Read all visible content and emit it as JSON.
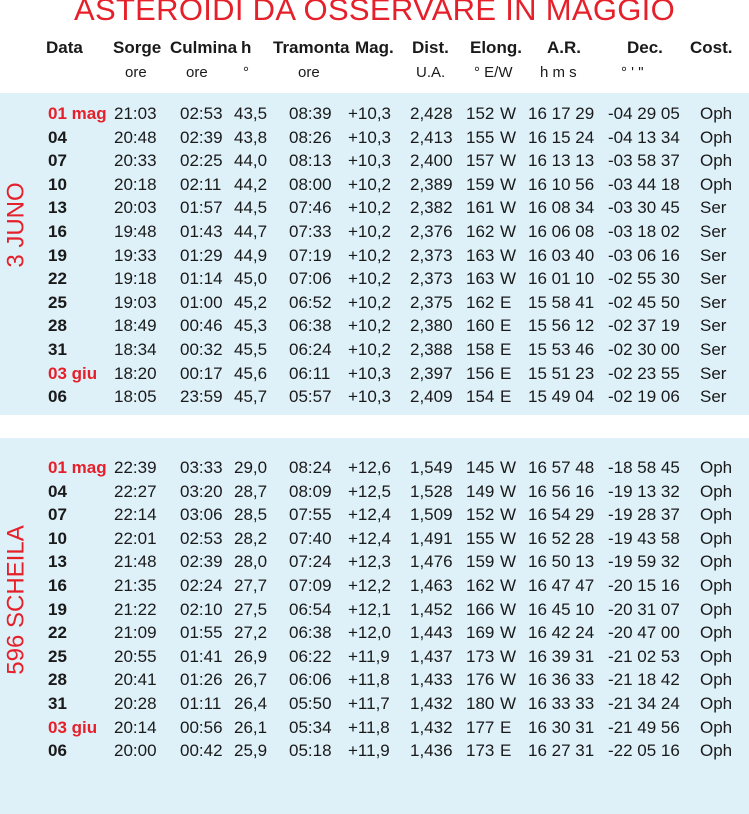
{
  "title": "ASTEROIDI DA OSSERVARE IN MAGGIO",
  "columns": [
    {
      "label": "Data",
      "unit": ""
    },
    {
      "label": "Sorge",
      "unit": "ore"
    },
    {
      "label": "Culmina",
      "unit": "ore"
    },
    {
      "label": "h",
      "unit": "°"
    },
    {
      "label": "Tramonta",
      "unit": "ore"
    },
    {
      "label": "Mag.",
      "unit": ""
    },
    {
      "label": "Dist.",
      "unit": "U.A."
    },
    {
      "label": "Elong.",
      "unit": "° E/W"
    },
    {
      "label": "A.R.",
      "unit": "h m s"
    },
    {
      "label": "Dec.",
      "unit": "° ' \""
    },
    {
      "label": "Cost.",
      "unit": ""
    }
  ],
  "sections": [
    {
      "name": "3 JUNO",
      "rows": [
        {
          "date": "01 mag",
          "red": true,
          "rise": "21:03",
          "culm": "02:53",
          "h": "43,5",
          "set": "08:39",
          "mag": "+10,3",
          "dist": "2,428",
          "elong": "152",
          "ew": "W",
          "ra": "16 17 29",
          "dec": "-04 29 05",
          "const": "Oph"
        },
        {
          "date": "04",
          "red": false,
          "rise": "20:48",
          "culm": "02:39",
          "h": "43,8",
          "set": "08:26",
          "mag": "+10,3",
          "dist": "2,413",
          "elong": "155",
          "ew": "W",
          "ra": "16 15 24",
          "dec": "-04 13 34",
          "const": "Oph"
        },
        {
          "date": "07",
          "red": false,
          "rise": "20:33",
          "culm": "02:25",
          "h": "44,0",
          "set": "08:13",
          "mag": "+10,3",
          "dist": "2,400",
          "elong": "157",
          "ew": "W",
          "ra": "16 13 13",
          "dec": "-03 58 37",
          "const": "Oph"
        },
        {
          "date": "10",
          "red": false,
          "rise": "20:18",
          "culm": "02:11",
          "h": "44,2",
          "set": "08:00",
          "mag": "+10,2",
          "dist": "2,389",
          "elong": "159",
          "ew": "W",
          "ra": "16 10 56",
          "dec": "-03 44 18",
          "const": "Oph"
        },
        {
          "date": "13",
          "red": false,
          "rise": "20:03",
          "culm": "01:57",
          "h": "44,5",
          "set": "07:46",
          "mag": "+10,2",
          "dist": "2,382",
          "elong": "161",
          "ew": "W",
          "ra": "16 08 34",
          "dec": "-03 30 45",
          "const": "Ser"
        },
        {
          "date": "16",
          "red": false,
          "rise": "19:48",
          "culm": "01:43",
          "h": "44,7",
          "set": "07:33",
          "mag": "+10,2",
          "dist": "2,376",
          "elong": "162",
          "ew": "W",
          "ra": "16 06 08",
          "dec": "-03 18 02",
          "const": "Ser"
        },
        {
          "date": "19",
          "red": false,
          "rise": "19:33",
          "culm": "01:29",
          "h": "44,9",
          "set": "07:19",
          "mag": "+10,2",
          "dist": "2,373",
          "elong": "163",
          "ew": "W",
          "ra": "16 03 40",
          "dec": "-03 06 16",
          "const": "Ser"
        },
        {
          "date": "22",
          "red": false,
          "rise": "19:18",
          "culm": "01:14",
          "h": "45,0",
          "set": "07:06",
          "mag": "+10,2",
          "dist": "2,373",
          "elong": "163",
          "ew": "W",
          "ra": "16 01 10",
          "dec": "-02 55 30",
          "const": "Ser"
        },
        {
          "date": "25",
          "red": false,
          "rise": "19:03",
          "culm": "01:00",
          "h": "45,2",
          "set": "06:52",
          "mag": "+10,2",
          "dist": "2,375",
          "elong": "162",
          "ew": "E",
          "ra": "15 58 41",
          "dec": "-02 45 50",
          "const": "Ser"
        },
        {
          "date": "28",
          "red": false,
          "rise": "18:49",
          "culm": "00:46",
          "h": "45,3",
          "set": "06:38",
          "mag": "+10,2",
          "dist": "2,380",
          "elong": "160",
          "ew": "E",
          "ra": "15 56 12",
          "dec": "-02 37 19",
          "const": "Ser"
        },
        {
          "date": "31",
          "red": false,
          "rise": "18:34",
          "culm": "00:32",
          "h": "45,5",
          "set": "06:24",
          "mag": "+10,2",
          "dist": "2,388",
          "elong": "158",
          "ew": "E",
          "ra": "15 53 46",
          "dec": "-02 30 00",
          "const": "Ser"
        },
        {
          "date": "03 giu",
          "red": true,
          "rise": "18:20",
          "culm": "00:17",
          "h": "45,6",
          "set": "06:11",
          "mag": "+10,3",
          "dist": "2,397",
          "elong": "156",
          "ew": "E",
          "ra": "15 51 23",
          "dec": "-02 23 55",
          "const": "Ser"
        },
        {
          "date": "06",
          "red": false,
          "rise": "18:05",
          "culm": "23:59",
          "h": "45,7",
          "set": "05:57",
          "mag": "+10,3",
          "dist": "2,409",
          "elong": "154",
          "ew": "E",
          "ra": "15 49 04",
          "dec": "-02 19 06",
          "const": "Ser"
        }
      ]
    },
    {
      "name": "596 SCHEILA",
      "rows": [
        {
          "date": "01 mag",
          "red": true,
          "rise": "22:39",
          "culm": "03:33",
          "h": "29,0",
          "set": "08:24",
          "mag": "+12,6",
          "dist": "1,549",
          "elong": "145",
          "ew": "W",
          "ra": "16 57 48",
          "dec": "-18 58 45",
          "const": "Oph"
        },
        {
          "date": "04",
          "red": false,
          "rise": "22:27",
          "culm": "03:20",
          "h": "28,7",
          "set": "08:09",
          "mag": "+12,5",
          "dist": "1,528",
          "elong": "149",
          "ew": "W",
          "ra": "16 56 16",
          "dec": "-19 13 32",
          "const": "Oph"
        },
        {
          "date": "07",
          "red": false,
          "rise": "22:14",
          "culm": "03:06",
          "h": "28,5",
          "set": "07:55",
          "mag": "+12,4",
          "dist": "1,509",
          "elong": "152",
          "ew": "W",
          "ra": "16 54 29",
          "dec": "-19 28 37",
          "const": "Oph"
        },
        {
          "date": "10",
          "red": false,
          "rise": "22:01",
          "culm": "02:53",
          "h": "28,2",
          "set": "07:40",
          "mag": "+12,4",
          "dist": "1,491",
          "elong": "155",
          "ew": "W",
          "ra": "16 52 28",
          "dec": "-19 43 58",
          "const": "Oph"
        },
        {
          "date": "13",
          "red": false,
          "rise": "21:48",
          "culm": "02:39",
          "h": "28,0",
          "set": "07:24",
          "mag": "+12,3",
          "dist": "1,476",
          "elong": "159",
          "ew": "W",
          "ra": "16 50 13",
          "dec": "-19 59 32",
          "const": "Oph"
        },
        {
          "date": "16",
          "red": false,
          "rise": "21:35",
          "culm": "02:24",
          "h": "27,7",
          "set": "07:09",
          "mag": "+12,2",
          "dist": "1,463",
          "elong": "162",
          "ew": "W",
          "ra": "16 47 47",
          "dec": "-20 15 16",
          "const": "Oph"
        },
        {
          "date": "19",
          "red": false,
          "rise": "21:22",
          "culm": "02:10",
          "h": "27,5",
          "set": "06:54",
          "mag": "+12,1",
          "dist": "1,452",
          "elong": "166",
          "ew": "W",
          "ra": "16 45 10",
          "dec": "-20 31 07",
          "const": "Oph"
        },
        {
          "date": "22",
          "red": false,
          "rise": "21:09",
          "culm": "01:55",
          "h": "27,2",
          "set": "06:38",
          "mag": "+12,0",
          "dist": "1,443",
          "elong": "169",
          "ew": "W",
          "ra": "16 42 24",
          "dec": "-20 47 00",
          "const": "Oph"
        },
        {
          "date": "25",
          "red": false,
          "rise": "20:55",
          "culm": "01:41",
          "h": "26,9",
          "set": "06:22",
          "mag": "+11,9",
          "dist": "1,437",
          "elong": "173",
          "ew": "W",
          "ra": "16 39 31",
          "dec": "-21 02 53",
          "const": "Oph"
        },
        {
          "date": "28",
          "red": false,
          "rise": "20:41",
          "culm": "01:26",
          "h": "26,7",
          "set": "06:06",
          "mag": "+11,8",
          "dist": "1,433",
          "elong": "176",
          "ew": "W",
          "ra": "16 36 33",
          "dec": "-21 18 42",
          "const": "Oph"
        },
        {
          "date": "31",
          "red": false,
          "rise": "20:28",
          "culm": "01:11",
          "h": "26,4",
          "set": "05:50",
          "mag": "+11,7",
          "dist": "1,432",
          "elong": "180",
          "ew": "W",
          "ra": "16 33 33",
          "dec": "-21 34 24",
          "const": "Oph"
        },
        {
          "date": "03 giu",
          "red": true,
          "rise": "20:14",
          "culm": "00:56",
          "h": "26,1",
          "set": "05:34",
          "mag": "+11,8",
          "dist": "1,432",
          "elong": "177",
          "ew": "E",
          "ra": "16 30 31",
          "dec": "-21 49 56",
          "const": "Oph"
        },
        {
          "date": "06",
          "red": false,
          "rise": "20:00",
          "culm": "00:42",
          "h": "25,9",
          "set": "05:18",
          "mag": "+11,9",
          "dist": "1,436",
          "elong": "173",
          "ew": "E",
          "ra": "16 27 31",
          "dec": "-22 05 16",
          "const": "Oph"
        }
      ]
    }
  ]
}
